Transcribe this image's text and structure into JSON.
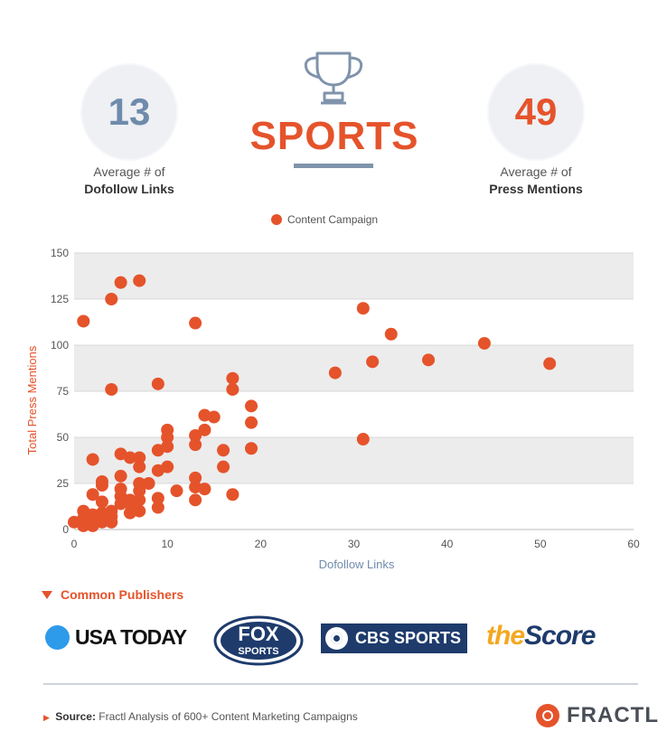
{
  "header": {
    "title": "SPORTS",
    "left_stat": {
      "value": "13",
      "label_line1": "Average # of",
      "label_line2": "Dofollow Links"
    },
    "right_stat": {
      "value": "49",
      "label_line1": "Average # of",
      "label_line2": "Press Mentions"
    },
    "icon": "trophy-icon"
  },
  "legend": {
    "label": "Content Campaign"
  },
  "chart_data": {
    "type": "scatter",
    "xlabel": "Dofollow Links",
    "ylabel": "Total Press Mentions",
    "xlim": [
      0,
      60
    ],
    "ylim": [
      0,
      150
    ],
    "xticks": [
      0,
      10,
      20,
      30,
      40,
      50,
      60
    ],
    "yticks": [
      0,
      25,
      50,
      75,
      100,
      125,
      150
    ],
    "grid": true,
    "legend_position": "top",
    "series": [
      {
        "name": "Content Campaign",
        "color": "#e5532b",
        "points": [
          [
            0,
            4
          ],
          [
            1,
            113
          ],
          [
            1,
            10
          ],
          [
            1,
            6
          ],
          [
            1,
            3
          ],
          [
            1,
            2
          ],
          [
            2,
            8
          ],
          [
            2,
            5
          ],
          [
            2,
            2
          ],
          [
            2,
            19
          ],
          [
            2,
            38
          ],
          [
            3,
            4
          ],
          [
            3,
            6
          ],
          [
            3,
            9
          ],
          [
            3,
            15
          ],
          [
            3,
            24
          ],
          [
            3,
            26
          ],
          [
            4,
            125
          ],
          [
            4,
            76
          ],
          [
            4,
            4
          ],
          [
            4,
            7
          ],
          [
            4,
            10
          ],
          [
            5,
            134
          ],
          [
            5,
            41
          ],
          [
            5,
            29
          ],
          [
            5,
            22
          ],
          [
            5,
            18
          ],
          [
            5,
            14
          ],
          [
            6,
            39
          ],
          [
            6,
            14
          ],
          [
            6,
            9
          ],
          [
            6,
            16
          ],
          [
            7,
            135
          ],
          [
            7,
            39
          ],
          [
            7,
            34
          ],
          [
            7,
            25
          ],
          [
            7,
            21
          ],
          [
            7,
            16
          ],
          [
            7,
            10
          ],
          [
            8,
            25
          ],
          [
            9,
            79
          ],
          [
            9,
            43
          ],
          [
            9,
            32
          ],
          [
            9,
            17
          ],
          [
            9,
            12
          ],
          [
            10,
            54
          ],
          [
            10,
            50
          ],
          [
            10,
            45
          ],
          [
            10,
            34
          ],
          [
            11,
            21
          ],
          [
            13,
            112
          ],
          [
            13,
            51
          ],
          [
            13,
            46
          ],
          [
            13,
            28
          ],
          [
            13,
            23
          ],
          [
            13,
            16
          ],
          [
            14,
            62
          ],
          [
            14,
            54
          ],
          [
            14,
            22
          ],
          [
            15,
            61
          ],
          [
            16,
            43
          ],
          [
            16,
            34
          ],
          [
            17,
            82
          ],
          [
            17,
            76
          ],
          [
            17,
            19
          ],
          [
            19,
            67
          ],
          [
            19,
            58
          ],
          [
            19,
            44
          ],
          [
            28,
            85
          ],
          [
            31,
            120
          ],
          [
            31,
            49
          ],
          [
            32,
            91
          ],
          [
            34,
            106
          ],
          [
            38,
            92
          ],
          [
            44,
            101
          ],
          [
            51,
            90
          ]
        ]
      }
    ]
  },
  "publishers": {
    "heading": "Common Publishers",
    "usa_today": "USA TODAY",
    "fox_line1": "FOX",
    "fox_line2": "SPORTS",
    "cbs": "CBS SPORTS",
    "score_the": "the",
    "score_score": "Score"
  },
  "footer": {
    "source_label": "Source:",
    "source_text": "Fractl Analysis of 600+ Content Marketing Campaigns",
    "brand": "FRACTL"
  }
}
